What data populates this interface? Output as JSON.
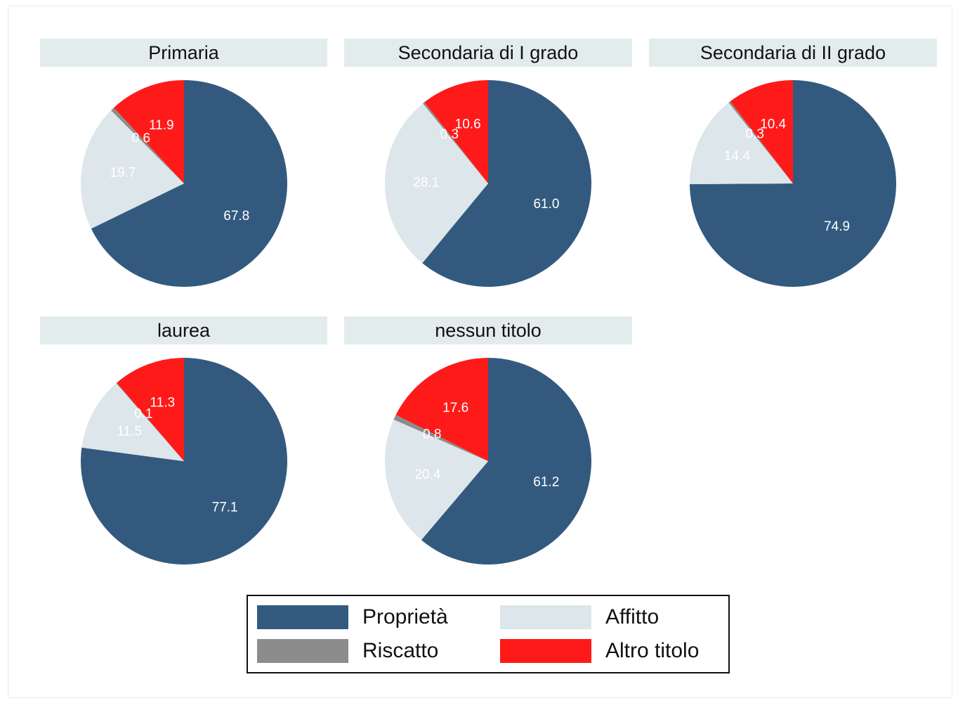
{
  "chart_data": {
    "type": "pie",
    "colors": {
      "Proprietà": "#335a7e",
      "Riscatto": "#8c8c8c",
      "Affitto": "#dde6ea",
      "Altro titolo": "#ff1a1a"
    },
    "label_colors": {
      "Proprietà": "#ffffff",
      "Riscatto": "#ffffff",
      "Affitto": "#ffffff",
      "Altro titolo": "#ffffff"
    },
    "legend": [
      "Proprietà",
      "Affitto",
      "Riscatto",
      "Altro titolo"
    ],
    "panels": [
      {
        "title": "Primaria",
        "slices": [
          {
            "category": "Proprietà",
            "value": 67.8,
            "label": "67.8"
          },
          {
            "category": "Affitto",
            "value": 19.7,
            "label": "19.7"
          },
          {
            "category": "Riscatto",
            "value": 0.6,
            "label": "0.6"
          },
          {
            "category": "Altro titolo",
            "value": 11.9,
            "label": "11.9"
          }
        ]
      },
      {
        "title": "Secondaria di I grado",
        "slices": [
          {
            "category": "Proprietà",
            "value": 61.0,
            "label": "61.0"
          },
          {
            "category": "Affitto",
            "value": 28.1,
            "label": "28.1"
          },
          {
            "category": "Riscatto",
            "value": 0.3,
            "label": "0.3"
          },
          {
            "category": "Altro titolo",
            "value": 10.6,
            "label": "10.6"
          }
        ]
      },
      {
        "title": "Secondaria di II grado",
        "slices": [
          {
            "category": "Proprietà",
            "value": 74.9,
            "label": "74.9"
          },
          {
            "category": "Affitto",
            "value": 14.4,
            "label": "14.4"
          },
          {
            "category": "Riscatto",
            "value": 0.3,
            "label": "0.3"
          },
          {
            "category": "Altro titolo",
            "value": 10.4,
            "label": "10.4"
          }
        ]
      },
      {
        "title": "laurea",
        "slices": [
          {
            "category": "Proprietà",
            "value": 77.1,
            "label": "77.1"
          },
          {
            "category": "Affitto",
            "value": 11.5,
            "label": "11.5"
          },
          {
            "category": "Riscatto",
            "value": 0.1,
            "label": "0.1"
          },
          {
            "category": "Altro titolo",
            "value": 11.3,
            "label": "11.3"
          }
        ]
      },
      {
        "title": "nessun titolo",
        "slices": [
          {
            "category": "Proprietà",
            "value": 61.2,
            "label": "61.2"
          },
          {
            "category": "Affitto",
            "value": 20.4,
            "label": "20.4"
          },
          {
            "category": "Riscatto",
            "value": 0.8,
            "label": "0.8"
          },
          {
            "category": "Altro titolo",
            "value": 17.6,
            "label": "17.6"
          }
        ]
      }
    ]
  }
}
